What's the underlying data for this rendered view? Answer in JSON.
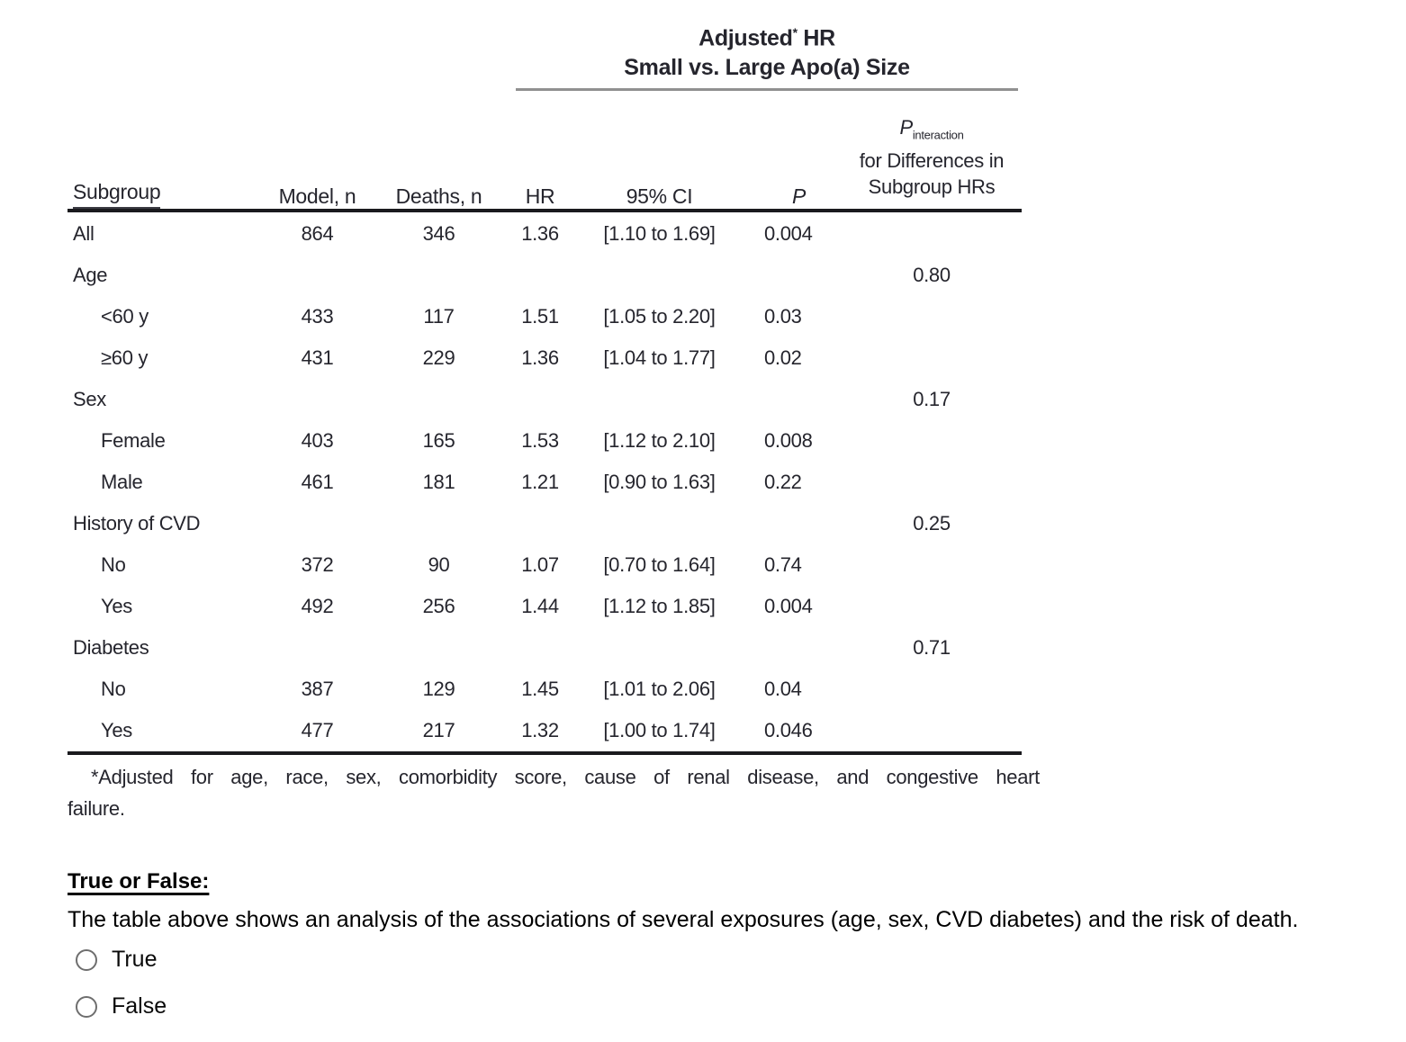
{
  "table": {
    "spanner": {
      "title_main": "Adjusted",
      "title_sup": "*",
      "title_rest": " HR",
      "subtitle": "Small vs. Large Apo(a) Size"
    },
    "pint_header": {
      "symbol": "P",
      "subscript": "interaction",
      "line2": "for Differences in",
      "line3": "Subgroup HRs"
    },
    "columns": {
      "subgroup": "Subgroup",
      "model": "Model, n",
      "deaths": "Deaths, n",
      "hr": "HR",
      "ci": "95% CI",
      "p": "P"
    },
    "rows": [
      {
        "label": "All",
        "indent": false,
        "model": "864",
        "deaths": "346",
        "hr": "1.36",
        "ci": "[1.10 to 1.69]",
        "p": "0.004",
        "pint": ""
      },
      {
        "label": "Age",
        "indent": false,
        "model": "",
        "deaths": "",
        "hr": "",
        "ci": "",
        "p": "",
        "pint": "0.80"
      },
      {
        "label": "<60 y",
        "indent": true,
        "model": "433",
        "deaths": "117",
        "hr": "1.51",
        "ci": "[1.05 to 2.20]",
        "p": "0.03",
        "pint": ""
      },
      {
        "label": "≥60 y",
        "indent": true,
        "model": "431",
        "deaths": "229",
        "hr": "1.36",
        "ci": "[1.04 to 1.77]",
        "p": "0.02",
        "pint": ""
      },
      {
        "label": "Sex",
        "indent": false,
        "model": "",
        "deaths": "",
        "hr": "",
        "ci": "",
        "p": "",
        "pint": "0.17"
      },
      {
        "label": "Female",
        "indent": true,
        "model": "403",
        "deaths": "165",
        "hr": "1.53",
        "ci": "[1.12 to 2.10]",
        "p": "0.008",
        "pint": ""
      },
      {
        "label": "Male",
        "indent": true,
        "model": "461",
        "deaths": "181",
        "hr": "1.21",
        "ci": "[0.90 to 1.63]",
        "p": "0.22",
        "pint": ""
      },
      {
        "label": "History of CVD",
        "indent": false,
        "model": "",
        "deaths": "",
        "hr": "",
        "ci": "",
        "p": "",
        "pint": "0.25"
      },
      {
        "label": "No",
        "indent": true,
        "model": "372",
        "deaths": "90",
        "hr": "1.07",
        "ci": "[0.70 to 1.64]",
        "p": "0.74",
        "pint": ""
      },
      {
        "label": "Yes",
        "indent": true,
        "model": "492",
        "deaths": "256",
        "hr": "1.44",
        "ci": "[1.12 to 1.85]",
        "p": "0.004",
        "pint": ""
      },
      {
        "label": "Diabetes",
        "indent": false,
        "model": "",
        "deaths": "",
        "hr": "",
        "ci": "",
        "p": "",
        "pint": "0.71"
      },
      {
        "label": "No",
        "indent": true,
        "model": "387",
        "deaths": "129",
        "hr": "1.45",
        "ci": "[1.01 to 2.06]",
        "p": "0.04",
        "pint": ""
      },
      {
        "label": "Yes",
        "indent": true,
        "model": "477",
        "deaths": "217",
        "hr": "1.32",
        "ci": "[1.00 to 1.74]",
        "p": "0.046",
        "pint": ""
      }
    ],
    "footnote": {
      "line1": "*Adjusted for age, race, sex, comorbidity score, cause of renal disease, and congestive heart",
      "line2": "failure."
    }
  },
  "question": {
    "heading": "True or False:",
    "text": "The table above shows an analysis of the associations of several exposures (age, sex, CVD diabetes) and the risk of death.",
    "options": [
      {
        "label": "True",
        "selected": false
      },
      {
        "label": "False",
        "selected": false
      }
    ]
  }
}
